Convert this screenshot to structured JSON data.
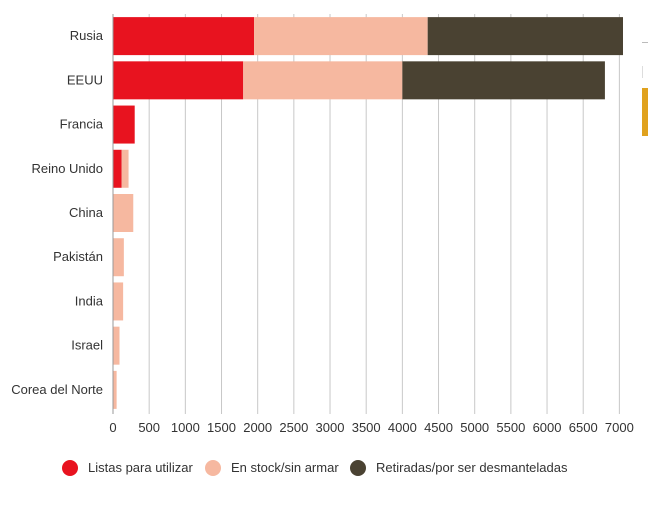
{
  "chart_data": {
    "type": "bar",
    "orientation": "horizontal",
    "stacked": true,
    "categories": [
      "Rusia",
      "EEUU",
      "Francia",
      "Reino Unido",
      "China",
      "Pakistán",
      "India",
      "Israel",
      "Corea del Norte"
    ],
    "series": [
      {
        "name": "Listas para utilizar",
        "color": "#e8131f",
        "values": [
          1950,
          1800,
          300,
          120,
          0,
          0,
          0,
          0,
          0
        ]
      },
      {
        "name": "En stock/sin armar",
        "color": "#f6b8a0",
        "values": [
          2400,
          2200,
          0,
          95,
          280,
          150,
          140,
          90,
          50
        ]
      },
      {
        "name": "Retiradas/por ser desmanteladas",
        "color": "#4a4232",
        "values": [
          2700,
          2800,
          0,
          0,
          0,
          0,
          0,
          0,
          0
        ]
      }
    ],
    "xticks": [
      "0",
      "500",
      "1000",
      "1500",
      "2000",
      "2500",
      "3000",
      "3500",
      "4000",
      "4500",
      "5000",
      "5500",
      "6000",
      "6500",
      "7000"
    ],
    "xlim": [
      0,
      7050
    ],
    "grid": "vertical",
    "legend": "bottom"
  }
}
